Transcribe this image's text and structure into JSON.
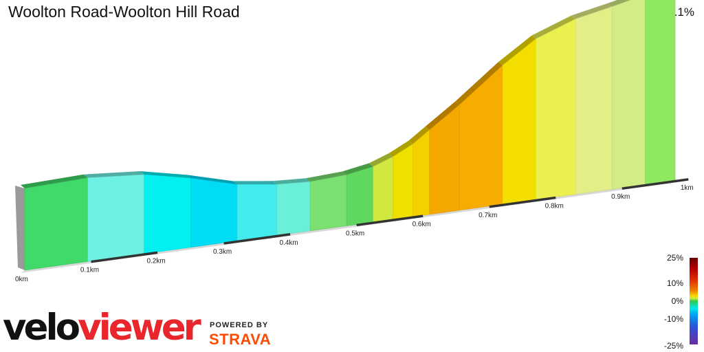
{
  "title": "Woolton Road-Woolton Hill Road",
  "summary": "1.0 km at 1.1%",
  "branding": {
    "logo_part1": "velo",
    "logo_part2": "viewer",
    "powered_by": "POWERED BY",
    "partner": "STRAVA"
  },
  "legend": {
    "labels": [
      "25%",
      "10%",
      "0%",
      "-10%",
      "-25%"
    ],
    "colors": [
      "#6a0000",
      "#f6d800",
      "#2fc84a",
      "#00a0f0",
      "#6a2ca0"
    ]
  },
  "chart_data": {
    "type": "area",
    "title": "Woolton Road-Woolton Hill Road",
    "x_unit": "km",
    "x_ticks": [
      "0km",
      "0.1km",
      "0.2km",
      "0.3km",
      "0.4km",
      "0.5km",
      "0.6km",
      "0.7km",
      "0.8km",
      "0.9km",
      "1km"
    ],
    "x_tick_values": [
      0,
      0.1,
      0.2,
      0.3,
      0.4,
      0.5,
      0.6,
      0.7,
      0.8,
      0.9,
      1.0
    ],
    "segments": [
      {
        "x0": 0.0,
        "x1": 0.095,
        "gradient_color": "#40d96a",
        "elev0": 0.0,
        "elev1": 0.2
      },
      {
        "x0": 0.095,
        "x1": 0.18,
        "gradient_color": "#6ef0e2",
        "elev0": 0.2,
        "elev1": -0.3
      },
      {
        "x0": 0.18,
        "x1": 0.25,
        "gradient_color": "#04f0f0",
        "elev0": -0.3,
        "elev1": -1.4
      },
      {
        "x0": 0.25,
        "x1": 0.32,
        "gradient_color": "#00dcf4",
        "elev0": -1.4,
        "elev1": -2.8
      },
      {
        "x0": 0.32,
        "x1": 0.38,
        "gradient_color": "#40ecec",
        "elev0": -2.8,
        "elev1": -3.4
      },
      {
        "x0": 0.38,
        "x1": 0.43,
        "gradient_color": "#6af0d8",
        "elev0": -3.4,
        "elev1": -3.6
      },
      {
        "x0": 0.43,
        "x1": 0.485,
        "gradient_color": "#7ae070",
        "elev0": -3.6,
        "elev1": -3.4
      },
      {
        "x0": 0.485,
        "x1": 0.525,
        "gradient_color": "#60d860",
        "elev0": -3.4,
        "elev1": -2.9
      },
      {
        "x0": 0.525,
        "x1": 0.555,
        "gradient_color": "#d0e840",
        "elev0": -2.9,
        "elev1": -2.1
      },
      {
        "x0": 0.555,
        "x1": 0.585,
        "gradient_color": "#f0e000",
        "elev0": -2.1,
        "elev1": -1.0
      },
      {
        "x0": 0.585,
        "x1": 0.61,
        "gradient_color": "#f4d000",
        "elev0": -1.0,
        "elev1": 0.3
      },
      {
        "x0": 0.61,
        "x1": 0.655,
        "gradient_color": "#f4a800",
        "elev0": 0.3,
        "elev1": 2.6
      },
      {
        "x0": 0.655,
        "x1": 0.72,
        "gradient_color": "#f6ac00",
        "elev0": 2.6,
        "elev1": 6.3
      },
      {
        "x0": 0.72,
        "x1": 0.77,
        "gradient_color": "#f4de00",
        "elev0": 6.3,
        "elev1": 8.7
      },
      {
        "x0": 0.77,
        "x1": 0.83,
        "gradient_color": "#eaf050",
        "elev0": 8.7,
        "elev1": 10.3
      },
      {
        "x0": 0.83,
        "x1": 0.885,
        "gradient_color": "#e4ee88",
        "elev0": 10.3,
        "elev1": 11.1
      },
      {
        "x0": 0.885,
        "x1": 0.935,
        "gradient_color": "#d2ec86",
        "elev0": 11.1,
        "elev1": 11.9
      },
      {
        "x0": 0.935,
        "x1": 0.98,
        "gradient_color": "#90e860",
        "elev0": 11.9,
        "elev1": 12.5
      }
    ],
    "distance_km": 1.0,
    "average_grade_percent": 1.1
  }
}
